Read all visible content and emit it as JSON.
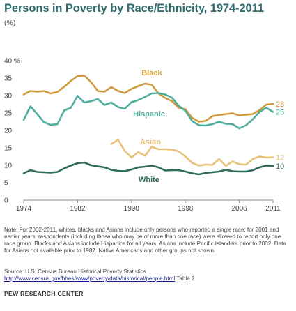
{
  "header": {
    "title": "Persons in Poverty by Race/Ethnicity, 1974-2011",
    "unit": "(%)"
  },
  "colors": {
    "black": "#d09a3c",
    "hispanic": "#4fae9e",
    "asian": "#e8c27a",
    "white": "#2f6b5e",
    "title": "#2f6b6e",
    "axis": "#888888"
  },
  "chart_data": {
    "type": "line",
    "title": "Persons in Poverty by Race/Ethnicity, 1974-2011",
    "xlabel": "",
    "ylabel": "(%)",
    "xlim": [
      1974,
      2011
    ],
    "ylim": [
      0,
      40
    ],
    "x_ticks": [
      "1974",
      "1982",
      "1990",
      "1998",
      "2006",
      "2011"
    ],
    "y_ticks": [
      "0",
      "5",
      "10",
      "15",
      "20",
      "25",
      "30",
      "35",
      "40 %"
    ],
    "grid": false,
    "legend": "inline labels",
    "series": [
      {
        "name": "Black",
        "end_label": "28",
        "x": [
          1974,
          1975,
          1976,
          1977,
          1978,
          1979,
          1980,
          1981,
          1982,
          1983,
          1984,
          1985,
          1986,
          1987,
          1988,
          1989,
          1990,
          1991,
          1992,
          1993,
          1994,
          1995,
          1996,
          1997,
          1998,
          1999,
          2000,
          2001,
          2002,
          2003,
          2004,
          2005,
          2006,
          2007,
          2008,
          2009,
          2010,
          2011
        ],
        "values": [
          30.3,
          31.3,
          31.1,
          31.3,
          30.6,
          31.0,
          32.5,
          34.2,
          35.6,
          35.7,
          33.8,
          31.3,
          31.1,
          32.4,
          31.3,
          30.7,
          31.9,
          32.7,
          33.4,
          33.1,
          30.6,
          29.3,
          28.4,
          26.5,
          26.1,
          23.6,
          22.5,
          22.7,
          24.1,
          24.4,
          24.7,
          24.9,
          24.3,
          24.5,
          24.7,
          25.8,
          27.4,
          27.6
        ]
      },
      {
        "name": "Hispanic",
        "end_label": "25",
        "x": [
          1974,
          1975,
          1976,
          1977,
          1978,
          1979,
          1980,
          1981,
          1982,
          1983,
          1984,
          1985,
          1986,
          1987,
          1988,
          1989,
          1990,
          1991,
          1992,
          1993,
          1994,
          1995,
          1996,
          1997,
          1998,
          1999,
          2000,
          2001,
          2002,
          2003,
          2004,
          2005,
          2006,
          2007,
          2008,
          2009,
          2010,
          2011
        ],
        "values": [
          23.0,
          26.9,
          24.7,
          22.4,
          21.6,
          21.8,
          25.7,
          26.5,
          29.9,
          28.0,
          28.4,
          29.0,
          27.3,
          28.0,
          26.7,
          26.2,
          28.1,
          28.7,
          29.6,
          30.6,
          30.7,
          30.3,
          29.4,
          27.1,
          25.6,
          22.7,
          21.5,
          21.4,
          21.8,
          22.5,
          21.9,
          21.8,
          20.6,
          21.5,
          23.2,
          25.3,
          26.5,
          25.3
        ]
      },
      {
        "name": "Asian",
        "end_label": "12",
        "x": [
          1987,
          1988,
          1989,
          1990,
          1991,
          1992,
          1993,
          1994,
          1995,
          1996,
          1997,
          1998,
          1999,
          2000,
          2001,
          2002,
          2003,
          2004,
          2005,
          2006,
          2007,
          2008,
          2009,
          2010,
          2011
        ],
        "values": [
          16.1,
          17.3,
          14.1,
          12.2,
          13.8,
          12.7,
          15.3,
          14.6,
          14.6,
          14.5,
          14.0,
          12.5,
          10.7,
          9.9,
          10.2,
          10.1,
          11.8,
          9.8,
          11.1,
          10.3,
          10.2,
          11.8,
          12.5,
          12.2,
          12.3
        ]
      },
      {
        "name": "White",
        "end_label": "10",
        "x": [
          1974,
          1975,
          1976,
          1977,
          1978,
          1979,
          1980,
          1981,
          1982,
          1983,
          1984,
          1985,
          1986,
          1987,
          1988,
          1989,
          1990,
          1991,
          1992,
          1993,
          1994,
          1995,
          1996,
          1997,
          1998,
          1999,
          2000,
          2001,
          2002,
          2003,
          2004,
          2005,
          2006,
          2007,
          2008,
          2009,
          2010,
          2011
        ],
        "values": [
          7.7,
          8.6,
          8.1,
          8.0,
          7.9,
          8.1,
          9.1,
          9.9,
          10.6,
          10.8,
          10.0,
          9.7,
          9.4,
          8.7,
          8.4,
          8.3,
          8.8,
          9.4,
          9.6,
          9.9,
          9.4,
          8.5,
          8.6,
          8.6,
          8.2,
          7.7,
          7.4,
          7.8,
          8.0,
          8.2,
          8.7,
          8.3,
          8.2,
          8.2,
          8.6,
          9.4,
          9.9,
          9.8
        ]
      }
    ]
  },
  "footer": {
    "note": "Note: For 2002-2011, whites, blacks and Asians include only persons who reported a single race; for 2001 and earlier years, respondents (including those who may be of more than one race) were allowed to report only one race group. Blacks and Asians include Hispanics for all years. Asians include Pacific Islanders prior to 2002. Data for Asians not available prior to 1987. Native Americans and other groups not shown.",
    "source_label": "Source: U.S. Census Bureau Historical Poverty Statistics",
    "source_url": "http://www.census.gov/hhes/www/poverty/data/historical/people.html",
    "source_suffix": " Table 2",
    "org": "PEW RESEARCH CENTER"
  }
}
